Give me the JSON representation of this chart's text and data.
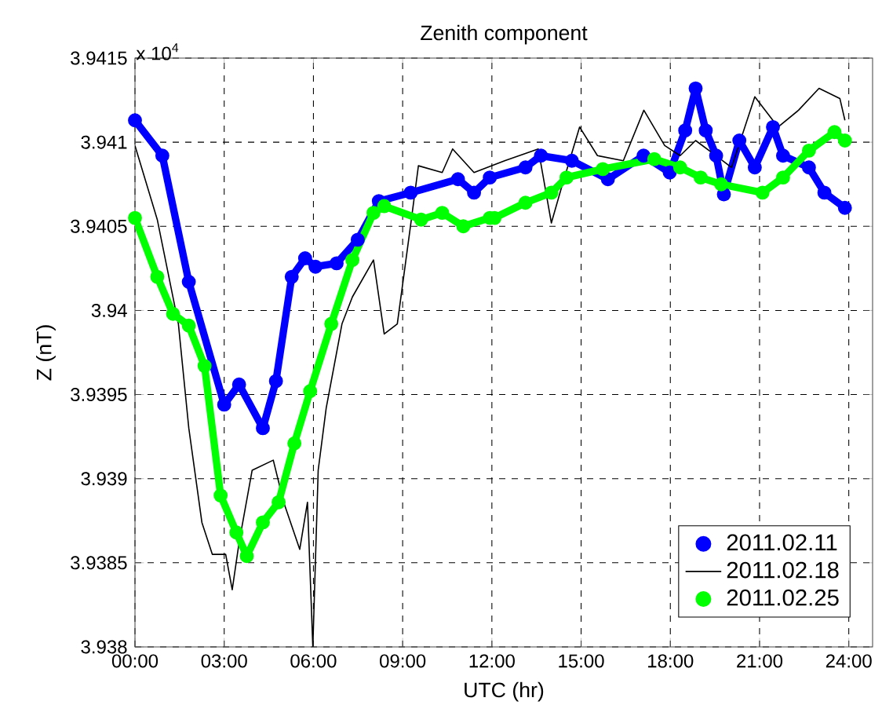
{
  "chart_data": {
    "type": "line",
    "title": "Zenith component",
    "xlabel": "UTC (hr)",
    "ylabel": "Z (nT)",
    "annotations": [
      "x 10$^{4}$"
    ],
    "xlim": [
      0,
      24.8
    ],
    "ylim": [
      3.938,
      3.9415
    ],
    "xticks": [
      {
        "value": 0,
        "label": "00:00"
      },
      {
        "value": 3,
        "label": "03:00"
      },
      {
        "value": 6,
        "label": "06:00"
      },
      {
        "value": 9,
        "label": "09:00"
      },
      {
        "value": 12,
        "label": "12:00"
      },
      {
        "value": 15,
        "label": "15:00"
      },
      {
        "value": 18,
        "label": "18:00"
      },
      {
        "value": 21,
        "label": "21:00"
      },
      {
        "value": 24,
        "label": "24:00"
      }
    ],
    "yticks": [
      3.938,
      3.9385,
      3.939,
      3.9395,
      3.94,
      3.9405,
      3.941,
      3.9415
    ],
    "grid": true,
    "legend": "bottom right",
    "series": [
      {
        "name": "2011.02.11",
        "color": "#0000ff",
        "marker": "circle",
        "x": [
          0,
          0.92,
          1.81,
          3.0,
          3.5,
          4.3,
          4.74,
          5.27,
          5.72,
          6.07,
          6.78,
          7.49,
          8.2,
          9.27,
          10.86,
          11.4,
          11.93,
          13.13,
          13.65,
          14.69,
          15.9,
          17.1,
          17.98,
          18.5,
          18.85,
          19.19,
          19.54,
          19.8,
          20.32,
          20.84,
          21.45,
          21.79,
          22.66,
          23.18,
          23.87
        ],
        "values": [
          3.94113,
          3.94092,
          3.94017,
          3.93944,
          3.93956,
          3.9393,
          3.93958,
          3.9402,
          3.94031,
          3.94026,
          3.94028,
          3.94042,
          3.94065,
          3.9407,
          3.94078,
          3.9407,
          3.94079,
          3.94085,
          3.94092,
          3.94089,
          3.94078,
          3.94092,
          3.94082,
          3.94107,
          3.94132,
          3.94107,
          3.94092,
          3.94069,
          3.94101,
          3.94085,
          3.94109,
          3.94092,
          3.94085,
          3.9407,
          3.94061
        ]
      },
      {
        "name": "2011.02.18",
        "color": "#000000",
        "marker": "none",
        "x": [
          0,
          0.75,
          1.46,
          1.81,
          2.25,
          2.6,
          3.05,
          3.27,
          3.5,
          3.94,
          4.65,
          5.0,
          5.54,
          5.8,
          5.98,
          6.16,
          6.43,
          6.96,
          7.31,
          8.02,
          8.38,
          8.82,
          9.27,
          9.53,
          10.33,
          10.68,
          11.4,
          12.43,
          13.56,
          14.0,
          14.34,
          14.95,
          15.55,
          16.42,
          17.11,
          17.81,
          18.33,
          18.85,
          19.54,
          20.06,
          20.84,
          21.62,
          22.31,
          23.0,
          23.7,
          23.87
        ],
        "values": [
          3.94098,
          3.94054,
          3.93992,
          3.9393,
          3.93874,
          3.93855,
          3.93855,
          3.93834,
          3.93862,
          3.93905,
          3.93911,
          3.93886,
          3.93858,
          3.93886,
          3.938,
          3.93905,
          3.93942,
          3.93992,
          3.94008,
          3.9403,
          3.93986,
          3.93992,
          3.94051,
          3.94086,
          3.94082,
          3.94096,
          3.94082,
          3.94089,
          3.94096,
          3.94052,
          3.94073,
          3.94109,
          3.94092,
          3.94089,
          3.94119,
          3.94098,
          3.94092,
          3.94101,
          3.94092,
          3.94085,
          3.94127,
          3.94109,
          3.94119,
          3.94132,
          3.94126,
          3.94113
        ]
      },
      {
        "name": "2011.02.25",
        "color": "#00ff00",
        "marker": "circle",
        "x": [
          0,
          0.75,
          1.28,
          1.81,
          2.34,
          2.88,
          3.41,
          3.76,
          4.3,
          4.83,
          5.36,
          5.89,
          6.6,
          7.31,
          8.02,
          8.38,
          9.62,
          10.33,
          11.04,
          11.93,
          12.09,
          13.13,
          14.0,
          14.51,
          15.73,
          17.46,
          18.33,
          19.02,
          19.71,
          21.1,
          21.79,
          22.66,
          23.52,
          23.87
        ],
        "values": [
          3.94055,
          3.9402,
          3.93998,
          3.93991,
          3.93967,
          3.9389,
          3.93868,
          3.93854,
          3.93874,
          3.93886,
          3.93921,
          3.93952,
          3.93992,
          3.9403,
          3.94058,
          3.94062,
          3.94054,
          3.94058,
          3.9405,
          3.94055,
          3.94055,
          3.94064,
          3.9407,
          3.94079,
          3.94084,
          3.9409,
          3.94085,
          3.94079,
          3.94075,
          3.9407,
          3.94079,
          3.94095,
          3.94106,
          3.94101
        ]
      }
    ]
  }
}
